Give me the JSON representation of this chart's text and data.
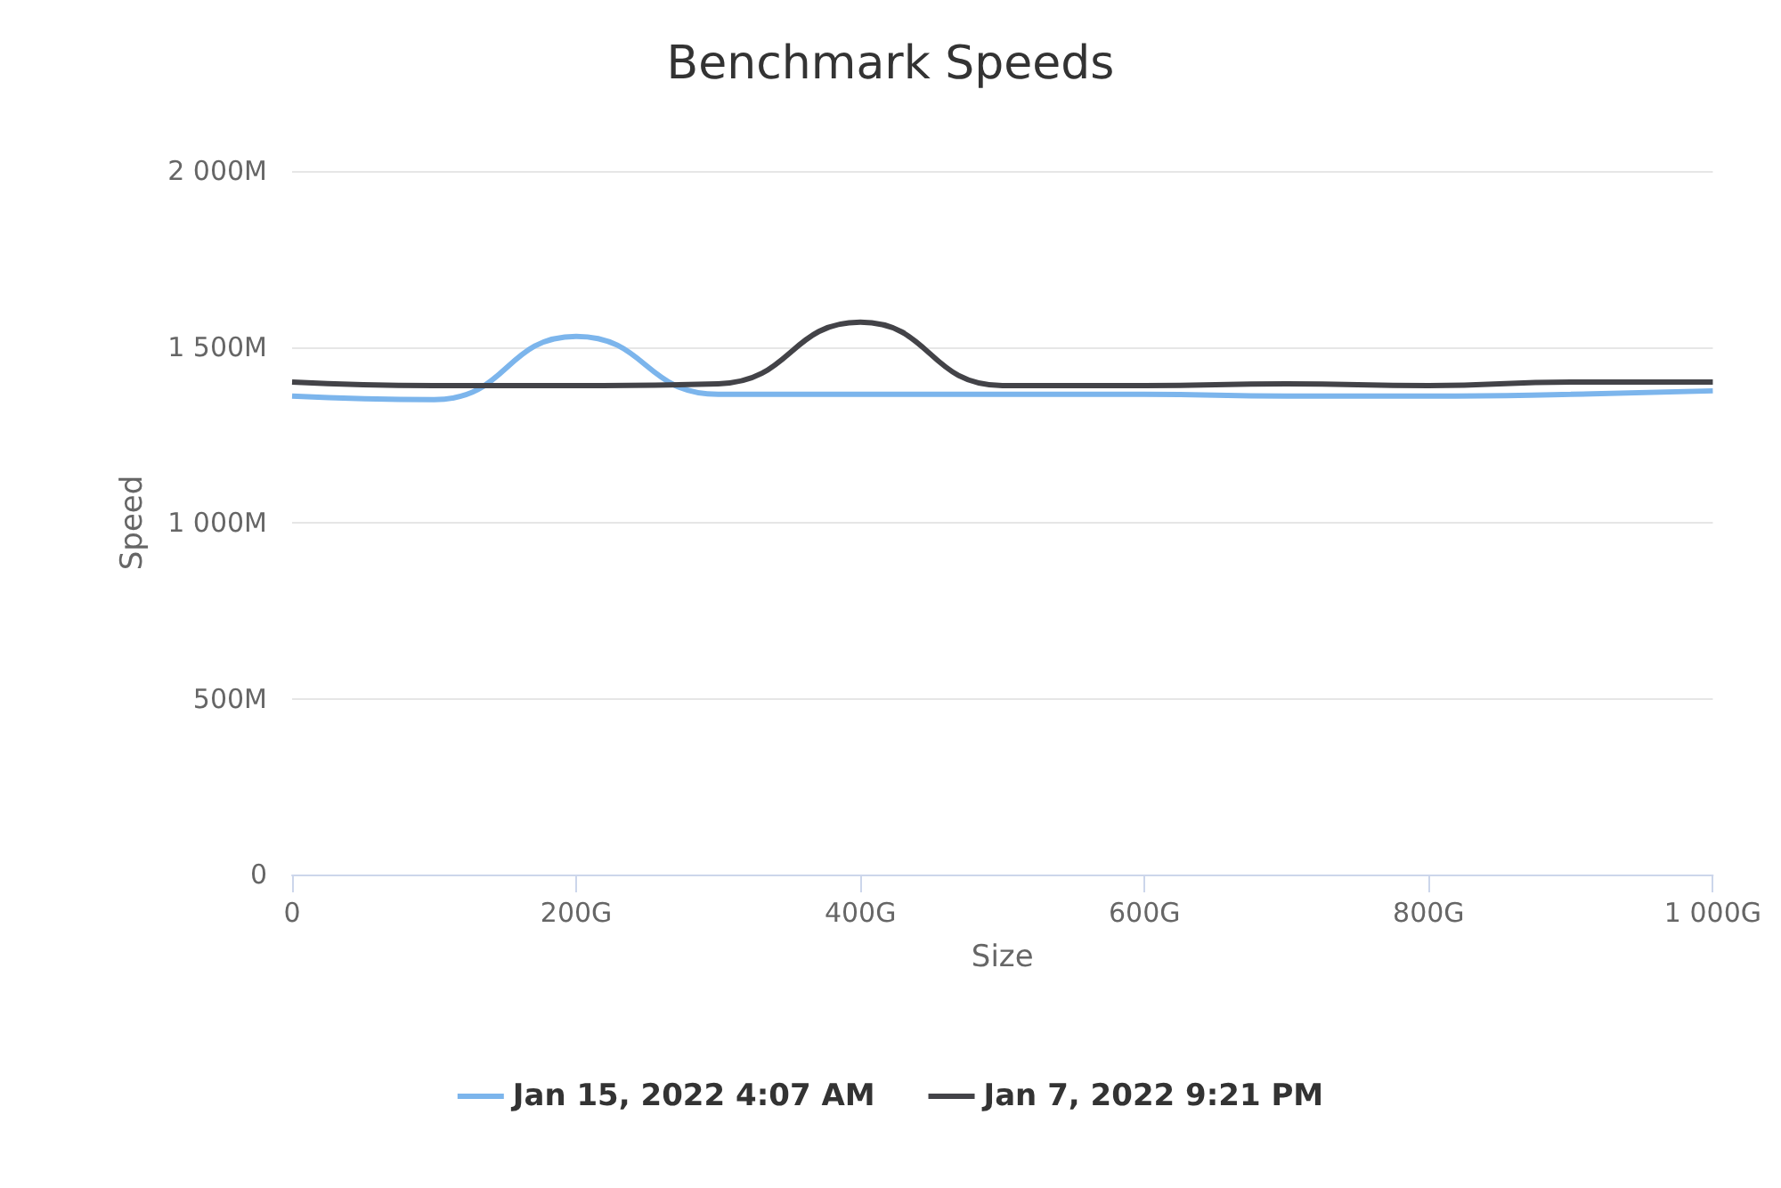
{
  "chart_data": {
    "type": "line",
    "title": "Benchmark Speeds",
    "xlabel": "Size",
    "ylabel": "Speed",
    "x": [
      0,
      100,
      200,
      300,
      400,
      500,
      600,
      700,
      800,
      900,
      1000
    ],
    "series": [
      {
        "name": "Jan 15, 2022 4:07 AM",
        "color": "#7cb5ec",
        "values": [
          1360,
          1350,
          1530,
          1365,
          1365,
          1365,
          1365,
          1360,
          1360,
          1365,
          1375
        ]
      },
      {
        "name": "Jan 7, 2022 9:21 PM",
        "color": "#434348",
        "values": [
          1400,
          1390,
          1390,
          1395,
          1570,
          1390,
          1390,
          1395,
          1390,
          1400,
          1400
        ]
      }
    ],
    "xlim": [
      0,
      1000
    ],
    "xticks": [
      {
        "value": 0,
        "label": "0"
      },
      {
        "value": 200,
        "label": "200G"
      },
      {
        "value": 400,
        "label": "400G"
      },
      {
        "value": 600,
        "label": "600G"
      },
      {
        "value": 800,
        "label": "800G"
      },
      {
        "value": 1000,
        "label": "1 000G"
      }
    ],
    "ylim": [
      0,
      2000
    ],
    "yticks": [
      {
        "value": 0,
        "label": "0"
      },
      {
        "value": 500,
        "label": "500M"
      },
      {
        "value": 1000,
        "label": "1 000M"
      },
      {
        "value": 1500,
        "label": "1 500M"
      },
      {
        "value": 2000,
        "label": "2 000M"
      }
    ],
    "grid": "y",
    "legend": "bottom",
    "marker": "none",
    "line_style": "solid"
  }
}
